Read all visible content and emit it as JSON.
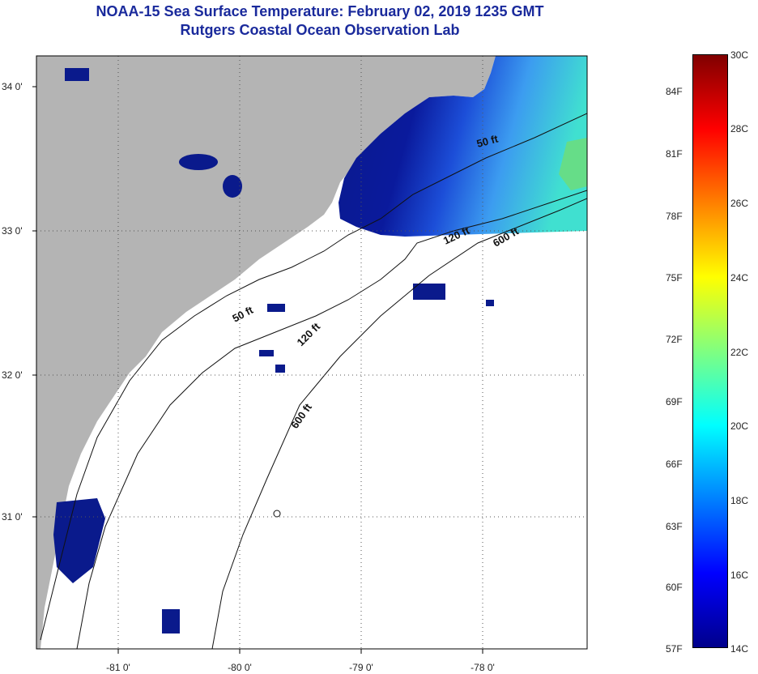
{
  "title": {
    "line1": "NOAA-15 Sea Surface Temperature:  February 02, 2019 1235 GMT",
    "line2": "Rutgers Coastal Ocean Observation Lab"
  },
  "map": {
    "lat_labels": [
      "34 0'",
      "33 0'",
      "32 0'",
      "31 0'"
    ],
    "lon_labels": [
      "-81 0'",
      "-80 0'",
      "-79 0'",
      "-78 0'"
    ],
    "contour_labels": [
      "50 ft",
      "120 ft",
      "600 ft",
      "50 ft",
      "120 ft",
      "600 ft"
    ]
  },
  "colorbar": {
    "fahrenheit": [
      "84F",
      "81F",
      "78F",
      "75F",
      "72F",
      "69F",
      "66F",
      "63F",
      "60F",
      "57F"
    ],
    "celsius": [
      "30C",
      "28C",
      "26C",
      "24C",
      "22C",
      "20C",
      "18C",
      "16C",
      "14C"
    ],
    "colors": [
      "#800000",
      "#ff0000",
      "#ff8000",
      "#ffff00",
      "#80ff80",
      "#00ffff",
      "#0080ff",
      "#0000ff",
      "#00008b"
    ]
  },
  "colors": {
    "land": "#b4b4b4",
    "cold_water": "#0a1a8c",
    "title": "#1a2a9c"
  }
}
